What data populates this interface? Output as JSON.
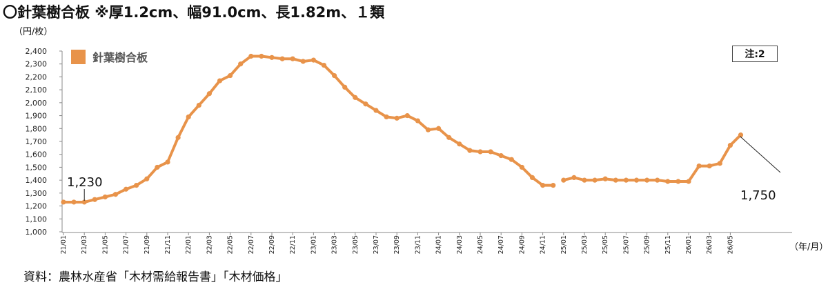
{
  "title": "〇針葉樹合板 ※厚1.2cm、幅91.0cm、長1.82m、１類",
  "note": "注:2",
  "source": "資料：農林水産省「木材需給報告書」「木材価格」",
  "chart_data": {
    "type": "line",
    "ylabel": "（円/枚）",
    "xlabel": "（年/月）",
    "ylim": [
      1000,
      2400
    ],
    "y_ticks": [
      "1,000",
      "1,100",
      "1,200",
      "1,300",
      "1,400",
      "1,500",
      "1,600",
      "1,700",
      "1,800",
      "1,900",
      "2,000",
      "2,100",
      "2,200",
      "2,300",
      "2,400"
    ],
    "x_tick_labels": [
      "21/01",
      "21/03",
      "21/05",
      "21/07",
      "21/09",
      "21/11",
      "22/01",
      "22/03",
      "22/05",
      "22/07",
      "22/09",
      "22/11",
      "23/01",
      "23/03",
      "23/05",
      "23/07",
      "23/09",
      "23/11",
      "24/01",
      "24/03",
      "24/05",
      "24/07",
      "24/09",
      "24/11",
      "25/01",
      "25/03",
      "25/05",
      "25/07",
      "25/09",
      "25/11",
      "26/01",
      "26/03",
      "26/05"
    ],
    "color": "#E8934A",
    "series": [
      {
        "name": "針葉樹合板",
        "segments": [
          {
            "x": [
              "21/01",
              "21/02",
              "21/03",
              "21/04",
              "21/05",
              "21/06",
              "21/07",
              "21/08",
              "21/09",
              "21/10",
              "21/11",
              "21/12",
              "22/01",
              "22/02",
              "22/03",
              "22/04",
              "22/05",
              "22/06",
              "22/07",
              "22/08",
              "22/09",
              "22/10",
              "22/11",
              "22/12",
              "23/01",
              "23/02",
              "23/03",
              "23/04",
              "23/05",
              "23/06",
              "23/07",
              "23/08",
              "23/09",
              "23/10",
              "23/11",
              "23/12",
              "24/01",
              "24/02",
              "24/03",
              "24/04",
              "24/05",
              "24/06",
              "24/07",
              "24/08",
              "24/09",
              "24/10",
              "24/11",
              "24/12"
            ],
            "values": [
              1230,
              1230,
              1230,
              1250,
              1270,
              1290,
              1330,
              1360,
              1410,
              1500,
              1540,
              1730,
              1890,
              1980,
              2070,
              2170,
              2210,
              2300,
              2360,
              2360,
              2350,
              2340,
              2340,
              2320,
              2330,
              2290,
              2210,
              2120,
              2040,
              1990,
              1940,
              1890,
              1880,
              1900,
              1860,
              1790,
              1800,
              1730,
              1680,
              1630,
              1620,
              1620,
              1590,
              1560,
              1500,
              1420,
              1360,
              1360
            ]
          },
          {
            "x": [
              "25/01",
              "25/02",
              "25/03",
              "25/04",
              "25/05",
              "25/06",
              "25/07",
              "25/08",
              "25/09",
              "25/10",
              "25/11",
              "25/12",
              "26/01",
              "26/02",
              "26/03",
              "26/04",
              "26/05",
              "26/06"
            ],
            "values": [
              1400,
              1420,
              1400,
              1400,
              1410,
              1400,
              1400,
              1400,
              1400,
              1400,
              1390,
              1390,
              1390,
              1510,
              1510,
              1530,
              1670,
              1750
            ]
          }
        ]
      }
    ],
    "annotations": [
      {
        "text": "1,230",
        "x": "21/03",
        "value": 1230
      },
      {
        "text": "1,750",
        "x": "26/06",
        "value": 1750
      }
    ],
    "legend": "top-left",
    "grid": false
  }
}
